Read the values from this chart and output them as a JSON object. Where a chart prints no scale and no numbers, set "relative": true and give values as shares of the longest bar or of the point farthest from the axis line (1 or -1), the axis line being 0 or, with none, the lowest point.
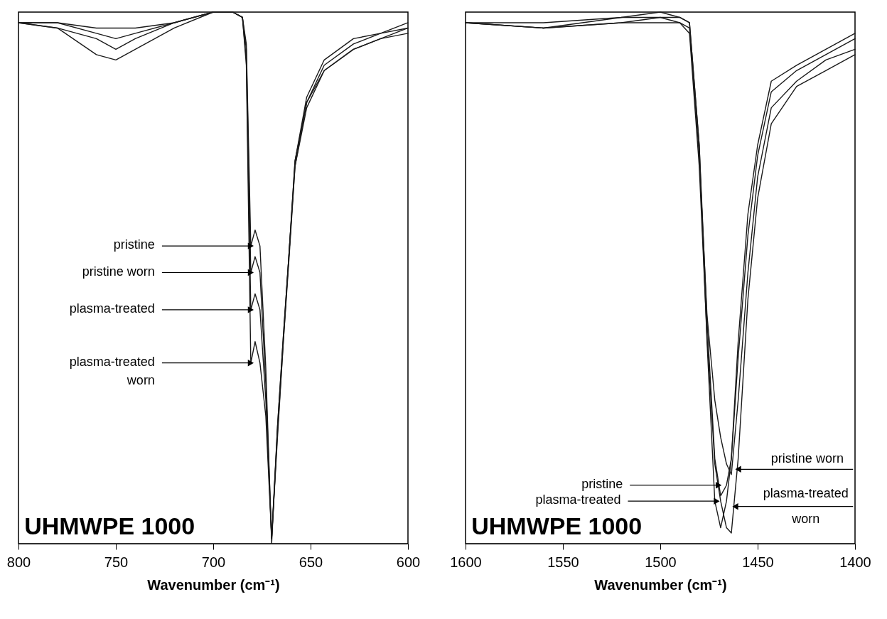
{
  "chart_data": [
    {
      "type": "line",
      "xlabel": "Wavenumber (cm⁻¹)",
      "xlim": [
        800,
        600
      ],
      "xticks": [
        800,
        750,
        700,
        650,
        600
      ],
      "relative": true,
      "x": [
        800,
        780,
        760,
        750,
        740,
        720,
        700,
        690,
        685,
        683,
        680.7,
        678.5,
        676,
        673,
        670,
        667,
        664,
        661,
        658,
        652,
        643,
        628,
        614,
        600
      ],
      "series": [
        {
          "color": "#1a1a1a",
          "values": [
            0.98,
            0.98,
            0.97,
            0.97,
            0.97,
            0.98,
            1.0,
            1.0,
            0.99,
            0.94,
            0.56,
            0.59,
            0.56,
            0.33,
            0.0,
            0.22,
            0.39,
            0.55,
            0.72,
            0.84,
            0.91,
            0.95,
            0.96,
            0.98
          ]
        },
        {
          "color": "#1a1a1a",
          "values": [
            0.98,
            0.98,
            0.96,
            0.95,
            0.96,
            0.98,
            1.0,
            1.0,
            0.99,
            0.93,
            0.51,
            0.54,
            0.51,
            0.3,
            0.01,
            0.22,
            0.39,
            0.55,
            0.72,
            0.83,
            0.9,
            0.94,
            0.96,
            0.97
          ]
        },
        {
          "color": "#1a1a1a",
          "values": [
            0.98,
            0.97,
            0.95,
            0.93,
            0.95,
            0.98,
            1.0,
            1.0,
            0.99,
            0.91,
            0.44,
            0.47,
            0.44,
            0.27,
            0.01,
            0.21,
            0.38,
            0.55,
            0.71,
            0.83,
            0.89,
            0.93,
            0.95,
            0.97
          ]
        },
        {
          "color": "#1a1a1a",
          "values": [
            0.98,
            0.97,
            0.92,
            0.91,
            0.93,
            0.97,
            1.0,
            1.0,
            0.99,
            0.9,
            0.34,
            0.38,
            0.34,
            0.24,
            0.01,
            0.2,
            0.38,
            0.54,
            0.71,
            0.82,
            0.89,
            0.93,
            0.95,
            0.96
          ]
        }
      ],
      "annotations": [
        {
          "text": "pristine",
          "x": 680.7,
          "y": 0.56
        },
        {
          "text": "pristine worn",
          "x": 680.7,
          "y": 0.51
        },
        {
          "text": "plasma-treated",
          "x": 680.7,
          "y": 0.44
        },
        {
          "text": "plasma-treated worn",
          "x": 680.7,
          "y": 0.34
        },
        "UHMWPE 1000"
      ]
    },
    {
      "type": "line",
      "xlabel": "Wavenumber (cm⁻¹)",
      "xlim": [
        1600,
        1400
      ],
      "xticks": [
        1600,
        1550,
        1500,
        1450,
        1400
      ],
      "relative": true,
      "x": [
        1600,
        1560,
        1520,
        1500,
        1490,
        1485,
        1480,
        1476,
        1472,
        1469,
        1466,
        1463.5,
        1460,
        1455,
        1450,
        1443,
        1430,
        1415,
        1400
      ],
      "series": [
        {
          "color": "#1a1a1a",
          "values": [
            0.98,
            0.97,
            0.98,
            0.99,
            0.99,
            0.98,
            0.75,
            0.42,
            0.16,
            0.09,
            0.11,
            0.16,
            0.35,
            0.58,
            0.73,
            0.85,
            0.89,
            0.92,
            0.95
          ]
        },
        {
          "color": "#1a1a1a",
          "values": [
            0.98,
            0.97,
            0.98,
            0.98,
            0.98,
            0.97,
            0.73,
            0.43,
            0.27,
            0.2,
            0.15,
            0.13,
            0.27,
            0.51,
            0.69,
            0.82,
            0.87,
            0.91,
            0.93
          ]
        },
        {
          "color": "#1a1a1a",
          "values": [
            0.98,
            0.98,
            0.99,
            1.0,
            0.99,
            0.98,
            0.75,
            0.38,
            0.08,
            0.03,
            0.08,
            0.16,
            0.38,
            0.62,
            0.75,
            0.87,
            0.9,
            0.93,
            0.96
          ]
        },
        {
          "color": "#1a1a1a",
          "values": [
            0.98,
            0.97,
            0.99,
            0.99,
            0.98,
            0.96,
            0.71,
            0.39,
            0.15,
            0.08,
            0.03,
            0.02,
            0.16,
            0.46,
            0.65,
            0.79,
            0.86,
            0.89,
            0.92
          ]
        }
      ],
      "annotations": [
        {
          "text": "pristine worn",
          "x": 1460,
          "y": 0.14
        },
        {
          "text": "pristine",
          "x": 1470,
          "y": 0.11
        },
        {
          "text": "plasma-treated",
          "x": 1471,
          "y": 0.08
        },
        {
          "text": "plasma-treated worn",
          "x": 1461.5,
          "y": 0.07
        },
        "UHMWPE 1000"
      ]
    }
  ]
}
